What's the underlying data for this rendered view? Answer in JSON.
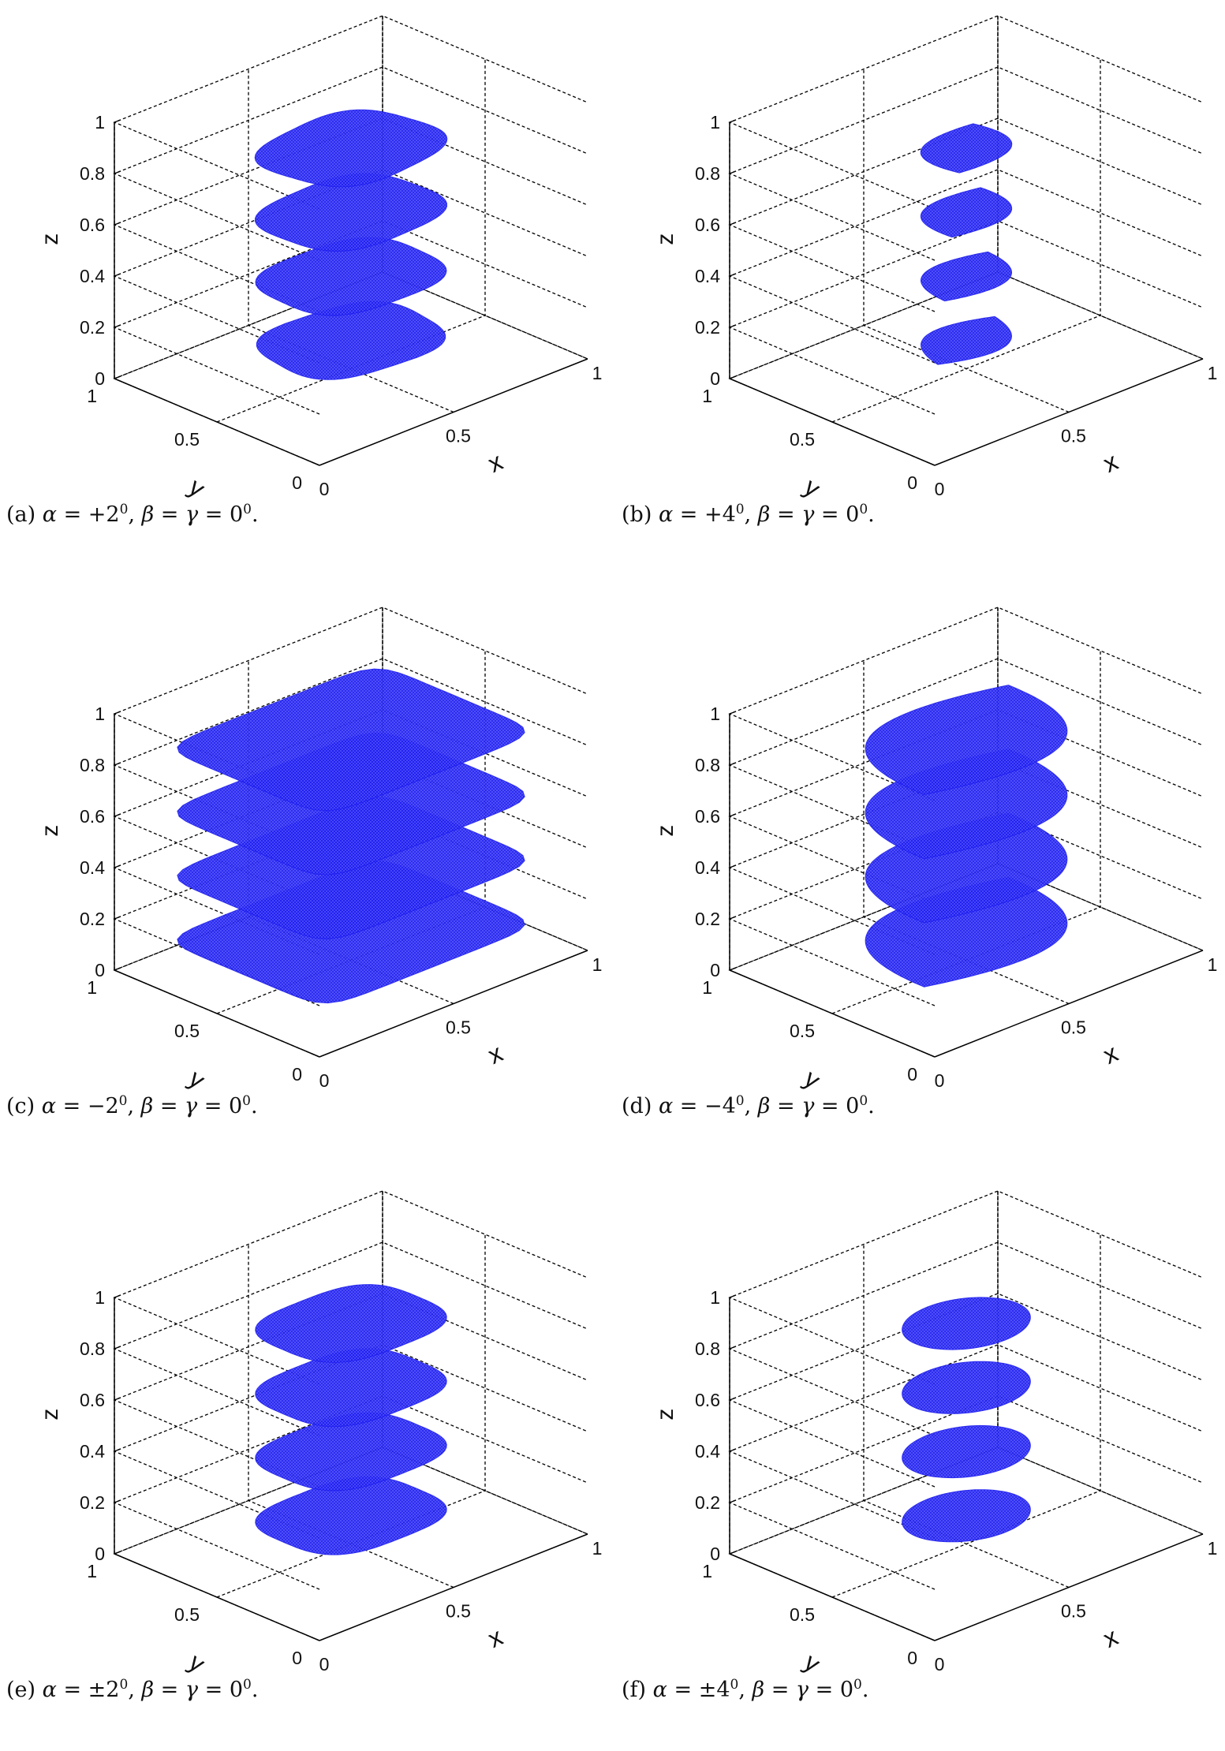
{
  "chart_data": [
    {
      "id": "a",
      "type": "3d-scatter",
      "xlabel": "x",
      "ylabel": "y",
      "zlabel": "z",
      "xlim": [
        0,
        1
      ],
      "ylim": [
        0,
        1
      ],
      "zlim": [
        0,
        1
      ],
      "x_ticks": [
        "0",
        "0.5",
        "1"
      ],
      "y_ticks": [
        "0",
        "0.5",
        "1"
      ],
      "z_ticks": [
        "0",
        "0.2",
        "0.4",
        "0.6",
        "0.8",
        "1"
      ],
      "caption": {
        "label": "(a)",
        "sign": "+",
        "angle": "2"
      },
      "layers": [
        0.05,
        0.3,
        0.55,
        0.8
      ],
      "shape": "rounded",
      "width": 0.5,
      "twist": 0.35,
      "color": "#2020f0"
    },
    {
      "id": "b",
      "type": "3d-scatter",
      "xlabel": "x",
      "ylabel": "y",
      "zlabel": "z",
      "xlim": [
        0,
        1
      ],
      "ylim": [
        0,
        1
      ],
      "zlim": [
        0,
        1
      ],
      "x_ticks": [
        "0",
        "0.5",
        "1"
      ],
      "y_ticks": [
        "0",
        "0.5",
        "1"
      ],
      "z_ticks": [
        "0",
        "0.2",
        "0.4",
        "0.6",
        "0.8",
        "1"
      ],
      "caption": {
        "label": "(b)",
        "sign": "+",
        "angle": "4"
      },
      "layers": [
        0.05,
        0.3,
        0.55,
        0.8
      ],
      "shape": "lens",
      "width": 0.36,
      "twist": 0.5,
      "color": "#2020f0"
    },
    {
      "id": "c",
      "type": "3d-scatter",
      "xlabel": "x",
      "ylabel": "y",
      "zlabel": "z",
      "xlim": [
        0,
        1
      ],
      "ylim": [
        0,
        1
      ],
      "zlim": [
        0,
        1
      ],
      "x_ticks": [
        "0",
        "0.5",
        "1"
      ],
      "y_ticks": [
        "0",
        "0.5",
        "1"
      ],
      "z_ticks": [
        "0",
        "0.2",
        "0.4",
        "0.6",
        "0.8",
        "1"
      ],
      "caption": {
        "label": "(c)",
        "sign": "−",
        "angle": "2"
      },
      "layers": [
        0.05,
        0.3,
        0.55,
        0.8
      ],
      "shape": "square",
      "width": 0.8,
      "twist": 0,
      "color": "#2020f0"
    },
    {
      "id": "d",
      "type": "3d-scatter",
      "xlabel": "x",
      "ylabel": "y",
      "zlabel": "z",
      "xlim": [
        0,
        1
      ],
      "ylim": [
        0,
        1
      ],
      "zlim": [
        0,
        1
      ],
      "x_ticks": [
        "0",
        "0.5",
        "1"
      ],
      "y_ticks": [
        "0",
        "0.5",
        "1"
      ],
      "z_ticks": [
        "0",
        "0.2",
        "0.4",
        "0.6",
        "0.8",
        "1"
      ],
      "caption": {
        "label": "(d)",
        "sign": "−",
        "angle": "4"
      },
      "layers": [
        0.05,
        0.3,
        0.55,
        0.8
      ],
      "shape": "lens",
      "width": 0.8,
      "twist": 0,
      "color": "#2020f0"
    },
    {
      "id": "e",
      "type": "3d-scatter",
      "xlabel": "x",
      "ylabel": "y",
      "zlabel": "z",
      "xlim": [
        0,
        1
      ],
      "ylim": [
        0,
        1
      ],
      "zlim": [
        0,
        1
      ],
      "x_ticks": [
        "0",
        "0.5",
        "1"
      ],
      "y_ticks": [
        "0",
        "0.5",
        "1"
      ],
      "z_ticks": [
        "0",
        "0.2",
        "0.4",
        "0.6",
        "0.8",
        "1"
      ],
      "caption": {
        "label": "(e)",
        "sign": "±",
        "angle": "2"
      },
      "layers": [
        0.05,
        0.3,
        0.55,
        0.8
      ],
      "shape": "rounded",
      "width": 0.5,
      "twist": 0,
      "color": "#2020f0"
    },
    {
      "id": "f",
      "type": "3d-scatter",
      "xlabel": "x",
      "ylabel": "y",
      "zlabel": "z",
      "xlim": [
        0,
        1
      ],
      "ylim": [
        0,
        1
      ],
      "zlim": [
        0,
        1
      ],
      "x_ticks": [
        "0",
        "0.5",
        "1"
      ],
      "y_ticks": [
        "0",
        "0.5",
        "1"
      ],
      "z_ticks": [
        "0",
        "0.2",
        "0.4",
        "0.6",
        "0.8",
        "1"
      ],
      "caption": {
        "label": "(f)",
        "sign": "±",
        "angle": "4"
      },
      "layers": [
        0.05,
        0.3,
        0.55,
        0.8
      ],
      "shape": "ellipse",
      "width": 0.38,
      "twist": 0,
      "color": "#2020f0"
    }
  ],
  "caption_tail": {
    "beta": "β",
    "eq": " = ",
    "gamma": "γ",
    "zero": "0",
    "deg": "0",
    "alpha": "α"
  }
}
